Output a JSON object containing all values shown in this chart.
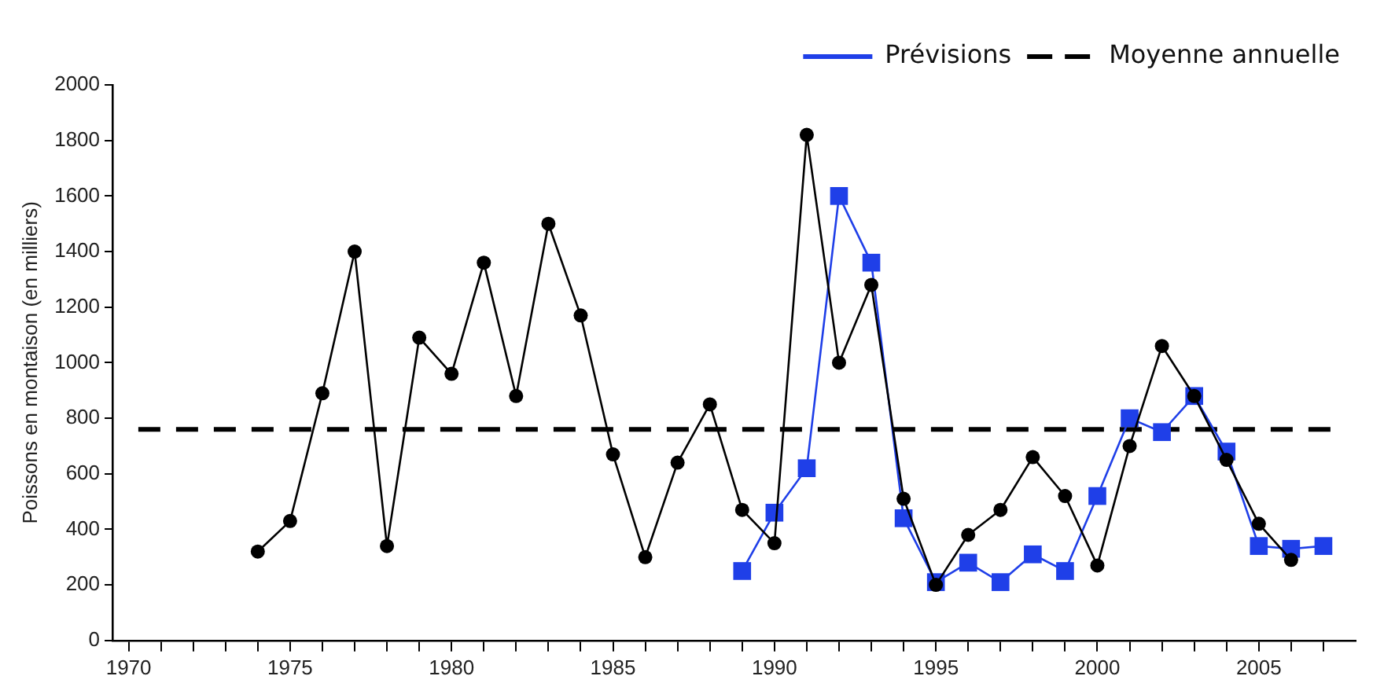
{
  "chart_data": {
    "type": "line",
    "ylabel": "Poissons en montaison (en milliers)",
    "xlim": [
      1969.5,
      2008
    ],
    "xticks": [
      {
        "value": 1970,
        "label": "1970"
      },
      {
        "value": 1971,
        "label": null
      },
      {
        "value": 1972,
        "label": null
      },
      {
        "value": 1973,
        "label": null
      },
      {
        "value": 1974,
        "label": null
      },
      {
        "value": 1975,
        "label": "1975"
      },
      {
        "value": 1976,
        "label": null
      },
      {
        "value": 1977,
        "label": null
      },
      {
        "value": 1978,
        "label": null
      },
      {
        "value": 1979,
        "label": null
      },
      {
        "value": 1980,
        "label": "1980"
      },
      {
        "value": 1981,
        "label": null
      },
      {
        "value": 1982,
        "label": null
      },
      {
        "value": 1983,
        "label": null
      },
      {
        "value": 1984,
        "label": null
      },
      {
        "value": 1985,
        "label": "1985"
      },
      {
        "value": 1986,
        "label": null
      },
      {
        "value": 1987,
        "label": null
      },
      {
        "value": 1988,
        "label": null
      },
      {
        "value": 1989,
        "label": null
      },
      {
        "value": 1990,
        "label": "1990"
      },
      {
        "value": 1991,
        "label": null
      },
      {
        "value": 1992,
        "label": null
      },
      {
        "value": 1993,
        "label": null
      },
      {
        "value": 1994,
        "label": null
      },
      {
        "value": 1995,
        "label": "1995"
      },
      {
        "value": 1996,
        "label": null
      },
      {
        "value": 1997,
        "label": null
      },
      {
        "value": 1998,
        "label": null
      },
      {
        "value": 1999,
        "label": null
      },
      {
        "value": 2000,
        "label": "2000"
      },
      {
        "value": 2001,
        "label": null
      },
      {
        "value": 2002,
        "label": null
      },
      {
        "value": 2003,
        "label": null
      },
      {
        "value": 2004,
        "label": null
      },
      {
        "value": 2005,
        "label": "2005"
      },
      {
        "value": 2006,
        "label": null
      },
      {
        "value": 2007,
        "label": null
      }
    ],
    "ylim": [
      0,
      2000
    ],
    "yticks": [
      0,
      200,
      400,
      600,
      800,
      1000,
      1200,
      1400,
      1600,
      1800,
      2000
    ],
    "series": [
      {
        "color": "#000000",
        "marker": "circle",
        "x": [
          1974,
          1975,
          1976,
          1977,
          1978,
          1979,
          1980,
          1981,
          1982,
          1983,
          1984,
          1985,
          1986,
          1987,
          1988,
          1989,
          1990,
          1991,
          1992,
          1993,
          1994,
          1995,
          1996,
          1997,
          1998,
          1999,
          2000,
          2001,
          2002,
          2003,
          2004,
          2005,
          2006
        ],
        "values": [
          320,
          430,
          890,
          1400,
          340,
          1090,
          960,
          1360,
          880,
          1500,
          1170,
          670,
          300,
          640,
          850,
          470,
          350,
          1820,
          1000,
          1280,
          510,
          200,
          380,
          470,
          660,
          520,
          270,
          700,
          1060,
          880,
          650,
          420,
          290
        ]
      },
      {
        "name": "Prévisions",
        "color": "#1f3fe8",
        "marker": "square",
        "x": [
          1989,
          1990,
          1991,
          1992,
          1993,
          1994,
          1995,
          1996,
          1997,
          1998,
          1999,
          2000,
          2001,
          2002,
          2003,
          2004,
          2005,
          2006,
          2007
        ],
        "values": [
          250,
          460,
          620,
          1600,
          1360,
          440,
          210,
          280,
          210,
          310,
          250,
          520,
          800,
          750,
          880,
          680,
          340,
          330,
          340
        ]
      }
    ],
    "ref_lines": [
      {
        "axis": "y",
        "value": 760,
        "label": "Moyenne annuelle",
        "color": "#000000",
        "line_style": "dashed"
      }
    ],
    "legend": "top right",
    "grid": false,
    "line_style": "solid"
  }
}
